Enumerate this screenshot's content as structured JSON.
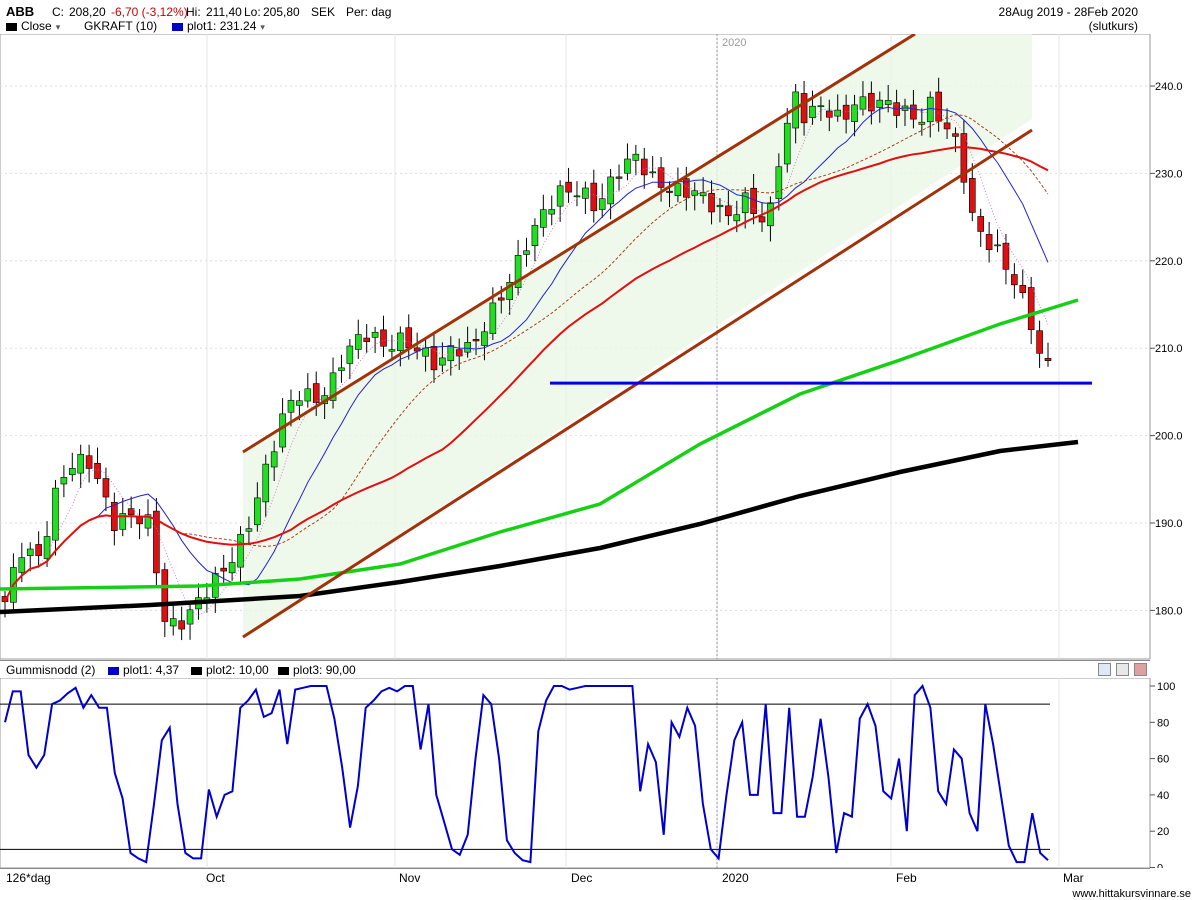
{
  "header": {
    "ticker": "ABB",
    "close_label": "C:",
    "close_value": "208,20",
    "change": "-6,70 (-3,12%)",
    "high_label": "Hi:",
    "high_value": "211,40",
    "low_label": "Lo:",
    "low_value": "205,80",
    "currency": "SEK",
    "period_label": "Per: dag",
    "date_range": "28Aug 2019 - 28Feb 2020",
    "price_type": "(slutkurs)",
    "legend": [
      {
        "label": "Close",
        "color": "#000000"
      },
      {
        "label": "GKRAFT (10)",
        "color": "#ffffff"
      },
      {
        "label": "plot1: 231.24",
        "color": "#0000cc"
      }
    ]
  },
  "indicator_header": {
    "name": "Gummisnodd (2)",
    "items": [
      {
        "label": "plot1: 4,37",
        "color": "#0000cc"
      },
      {
        "label": "plot2: 10,00",
        "color": "#000000"
      },
      {
        "label": "plot3: 90,00",
        "color": "#000000"
      }
    ]
  },
  "x_axis": {
    "period_label": "126*dag",
    "months": [
      "Oct",
      "Nov",
      "Dec",
      "2020",
      "Feb",
      "Mar"
    ],
    "year_marker": "2020"
  },
  "footer": {
    "watermark": "www.hittakursvinnare.se"
  },
  "chart_data": [
    {
      "type": "candlestick",
      "title": "ABB",
      "ylabel": "SEK",
      "ylim": [
        175,
        245
      ],
      "yticks": [
        "180.0",
        "190.0",
        "200.0",
        "210.0",
        "220.0",
        "230.0",
        "240.0"
      ],
      "x": [
        "2019-08-28",
        "2019-10-01",
        "2019-11-01",
        "2019-12-01",
        "2020-01-01",
        "2020-02-01",
        "2020-02-28"
      ],
      "ohlc_sample": [
        {
          "date": "2020-02-28",
          "open": 208.2,
          "high": 211.4,
          "low": 205.8,
          "close": 208.2
        }
      ],
      "series": [
        {
          "name": "Close",
          "color": "#000000"
        },
        {
          "name": "plot1",
          "last_value": 231.24,
          "color": "#0000cc"
        }
      ],
      "support_level": 206.0,
      "channel_color": "#a0330a",
      "ma_colors": {
        "red": "#e01010",
        "green": "#16d016",
        "black": "#000000"
      }
    },
    {
      "type": "line",
      "title": "Gummisnodd (2)",
      "ylim": [
        0,
        100
      ],
      "yticks": [
        "0",
        "20",
        "40",
        "60",
        "80",
        "100"
      ],
      "thresholds": [
        10,
        90
      ],
      "series": [
        {
          "name": "plot1",
          "last_value": 4.37,
          "color": "#0000cc",
          "values": [
            80,
            97,
            97,
            62,
            55,
            62,
            90,
            92,
            96,
            99,
            88,
            95,
            88,
            88,
            52,
            38,
            8,
            5,
            3,
            35,
            70,
            77,
            35,
            8,
            5,
            5,
            43,
            28,
            40,
            42,
            88,
            92,
            98,
            83,
            85,
            98,
            68,
            98,
            99,
            100,
            100,
            100,
            82,
            55,
            22,
            45,
            88,
            92,
            97,
            99,
            97,
            100,
            100,
            65,
            90,
            40,
            25,
            10,
            7,
            18,
            60,
            95,
            90,
            60,
            15,
            8,
            4,
            3,
            75,
            92,
            100,
            100,
            98,
            99,
            100,
            100,
            100,
            100,
            100,
            100,
            100,
            42,
            68,
            58,
            18,
            80,
            72,
            88,
            78,
            35,
            10,
            5,
            40,
            70,
            80,
            40,
            40,
            90,
            30,
            30,
            88,
            28,
            28,
            50,
            82,
            50,
            8,
            30,
            28,
            82,
            90,
            78,
            42,
            38,
            60,
            20,
            95,
            100,
            88,
            42,
            35,
            65,
            60,
            30,
            20,
            90,
            68,
            40,
            12,
            3,
            3,
            30,
            8,
            4
          ]
        }
      ]
    }
  ]
}
